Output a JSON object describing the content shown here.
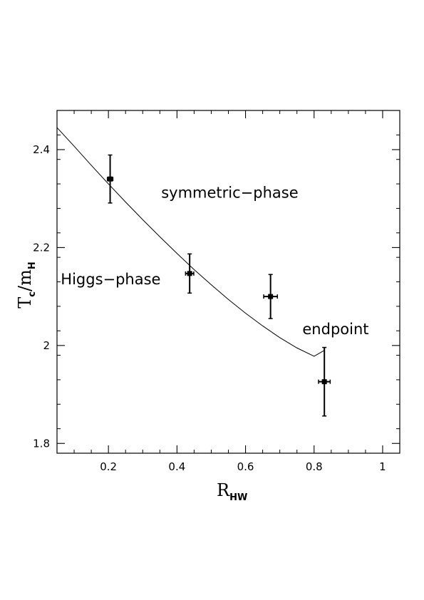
{
  "chart_data": {
    "type": "scatter",
    "xlabel": {
      "main": "R",
      "sub": "HW"
    },
    "ylabel": {
      "main": "T",
      "sub": "c",
      "sep": "/m",
      "sub2": "H"
    },
    "xlim": [
      0.05,
      1.05
    ],
    "ylim": [
      1.78,
      2.48
    ],
    "x_ticks": [
      0.2,
      0.4,
      0.6,
      0.8,
      1
    ],
    "x_tick_labels": [
      "0.2",
      "0.4",
      "0.6",
      "0.8",
      "1"
    ],
    "y_ticks": [
      1.8,
      2.0,
      2.2,
      2.4
    ],
    "y_tick_labels": [
      "1.8",
      "2",
      "2.2",
      "2.4"
    ],
    "x_minor_step": 0.05,
    "y_minor_step": 0.05,
    "points": [
      {
        "x": 0.205,
        "y": 2.34,
        "xerr": 0.008,
        "yerr": 0.049
      },
      {
        "x": 0.437,
        "y": 2.147,
        "xerr": 0.012,
        "yerr": 0.04
      },
      {
        "x": 0.673,
        "y": 2.1,
        "xerr": 0.02,
        "yerr": 0.045
      },
      {
        "x": 0.83,
        "y": 1.926,
        "xerr": 0.017,
        "yerr": 0.07
      }
    ],
    "curve": {
      "x": [
        0.05,
        0.1,
        0.15,
        0.2,
        0.25,
        0.3,
        0.35,
        0.4,
        0.45,
        0.5,
        0.55,
        0.6,
        0.65,
        0.7,
        0.75,
        0.8,
        0.83
      ],
      "y": [
        2.445,
        2.407,
        2.368,
        2.33,
        2.293,
        2.257,
        2.222,
        2.188,
        2.155,
        2.124,
        2.094,
        2.066,
        2.04,
        2.016,
        1.995,
        1.978,
        1.99
      ]
    },
    "annotations": [
      {
        "text": "symmetric−phase",
        "x": 0.354,
        "y": 2.302
      },
      {
        "text": "Higgs−phase",
        "x": 0.061,
        "y": 2.125
      },
      {
        "text": "endpoint",
        "x": 0.766,
        "y": 2.023
      }
    ],
    "grid": false,
    "legend": "none"
  }
}
